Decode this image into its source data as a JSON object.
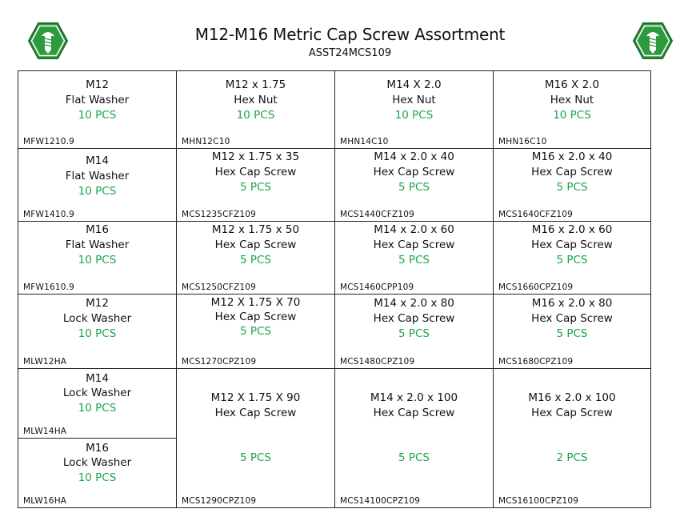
{
  "header": {
    "title": "M12-M16 Metric Cap Screw Assortment",
    "subtitle": "ASST24MCS109",
    "colors": {
      "logo_green": "#2e9a3e",
      "pcs_green": "#1aa54a"
    },
    "logo_icon": "screw-in-hexagon-icon"
  },
  "cells": [
    {
      "line1": "M12",
      "line2": "Flat Washer",
      "qty": "10 PCS",
      "code": "MFW1210.9"
    },
    {
      "line1": "M12 x 1.75",
      "line2": "Hex Nut",
      "qty": "10 PCS",
      "code": "MHN12C10"
    },
    {
      "line1": "M14 X 2.0",
      "line2": "Hex Nut",
      "qty": "10 PCS",
      "code": "MHN14C10"
    },
    {
      "line1": "M16 X 2.0",
      "line2": "Hex Nut",
      "qty": "10 PCS",
      "code": "MHN16C10"
    },
    {
      "line1": "M14",
      "line2": "Flat Washer",
      "qty": "10 PCS",
      "code": "MFW1410.9"
    },
    {
      "line1": "M12 x 1.75 x 35",
      "line2": "Hex Cap Screw",
      "qty": "5 PCS",
      "code": "MCS1235CFZ109"
    },
    {
      "line1": "M14 x 2.0 x 40",
      "line2": "Hex Cap Screw",
      "qty": "5 PCS",
      "code": "MCS1440CFZ109"
    },
    {
      "line1": "M16 x 2.0 x 40",
      "line2": "Hex Cap Screw",
      "qty": "5 PCS",
      "code": "MCS1640CFZ109"
    },
    {
      "line1": "M16",
      "line2": "Flat Washer",
      "qty": "10 PCS",
      "code": "MFW1610.9"
    },
    {
      "line1": "M12 x 1.75 x 50",
      "line2": "Hex Cap Screw",
      "qty": "5 PCS",
      "code": "MCS1250CFZ109"
    },
    {
      "line1": "M14 x 2.0 x 60",
      "line2": "Hex Cap Screw",
      "qty": "5 PCS",
      "code": "MCS1460CPP109"
    },
    {
      "line1": "M16 x 2.0 x 60",
      "line2": "Hex Cap Screw",
      "qty": "5 PCS",
      "code": "MCS1660CPZ109"
    },
    {
      "line1": "M12",
      "line2": "Lock Washer",
      "qty": "10 PCS",
      "code": "MLW12HA"
    },
    {
      "line1": "M12 X 1.75 X 70",
      "line2": "Hex Cap Screw",
      "qty": "5 PCS",
      "code": "MCS1270CPZ109"
    },
    {
      "line1": "M14 x 2.0 x 80",
      "line2": "Hex Cap Screw",
      "qty": "5 PCS",
      "code": "MCS1480CPZ109"
    },
    {
      "line1": "M16 x 2.0 x 80",
      "line2": "Hex Cap Screw",
      "qty": "5 PCS",
      "code": "MCS1680CPZ109"
    },
    {
      "line1": "M14",
      "line2": "Lock Washer",
      "qty": "10 PCS",
      "code": "MLW14HA"
    },
    {
      "line1": "M16",
      "line2": "Lock Washer",
      "qty": "10 PCS",
      "code": "MLW16HA"
    },
    {
      "line1": "M12 X 1.75 X 90",
      "line2": "Hex Cap Screw",
      "qty": "5 PCS",
      "code": "MCS1290CPZ109"
    },
    {
      "line1": "M14 x 2.0 x 100",
      "line2": "Hex Cap Screw",
      "qty": "5 PCS",
      "code": "MCS14100CPZ109"
    },
    {
      "line1": "M16 x 2.0 x 100",
      "line2": "Hex Cap Screw",
      "qty": "2 PCS",
      "code": "MCS16100CPZ109"
    }
  ]
}
